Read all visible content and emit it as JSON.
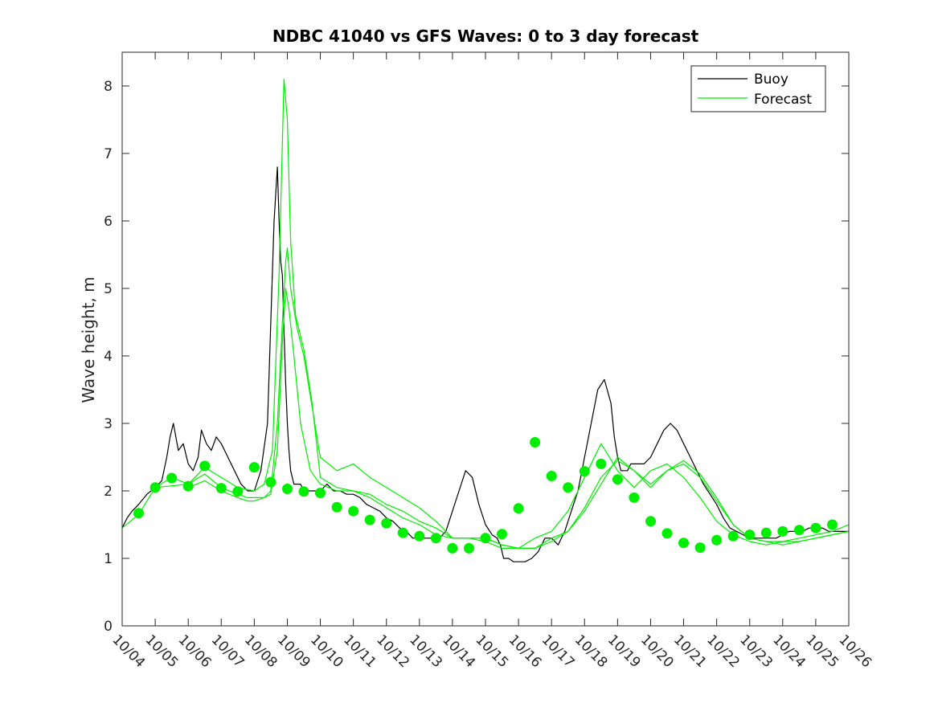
{
  "chart_data": {
    "type": "line",
    "title": "NDBC 41040 vs GFS Waves: 0 to 3 day forecast",
    "xlabel": "",
    "ylabel": "Wave height, m",
    "x_unit": "days since 10/04",
    "xlim": [
      0,
      22
    ],
    "ylim": [
      0,
      8.5
    ],
    "x_tick_labels": [
      "10/04",
      "10/05",
      "10/06",
      "10/07",
      "10/08",
      "10/09",
      "10/10",
      "10/11",
      "10/12",
      "10/13",
      "10/14",
      "10/15",
      "10/16",
      "10/17",
      "10/18",
      "10/19",
      "10/20",
      "10/21",
      "10/22",
      "10/23",
      "10/24",
      "10/25",
      "10/26"
    ],
    "y_ticks": [
      0,
      1,
      2,
      3,
      4,
      5,
      6,
      7,
      8
    ],
    "grid": false,
    "legend_placement": "top-right",
    "colors": {
      "buoy": "#000000",
      "forecast": "#00ee00",
      "axis": "#262626"
    },
    "legend": [
      {
        "label": "Buoy",
        "color": "#000000"
      },
      {
        "label": "Forecast",
        "color": "#00ee00"
      }
    ],
    "series": [
      {
        "name": "Buoy",
        "kind": "observed",
        "x": [
          0,
          0.15,
          0.3,
          0.5,
          0.75,
          1.0,
          1.2,
          1.35,
          1.45,
          1.55,
          1.7,
          1.85,
          2.0,
          2.15,
          2.3,
          2.4,
          2.55,
          2.7,
          2.85,
          3.0,
          3.2,
          3.4,
          3.6,
          3.8,
          4.0,
          4.2,
          4.4,
          4.6,
          4.7,
          4.75,
          4.8,
          4.85,
          4.9,
          4.95,
          5.0,
          5.05,
          5.1,
          5.2,
          5.3,
          5.4,
          5.5,
          5.6,
          5.8,
          6.0,
          6.2,
          6.4,
          6.6,
          6.8,
          7.0,
          7.2,
          7.4,
          7.6,
          7.8,
          8.0,
          8.2,
          8.4,
          8.6,
          8.8,
          9.0,
          9.2,
          9.4,
          9.6,
          9.8,
          10.0,
          10.2,
          10.4,
          10.6,
          10.8,
          11.0,
          11.2,
          11.35,
          11.45,
          11.55,
          11.7,
          11.85,
          12.0,
          12.2,
          12.4,
          12.6,
          12.8,
          13.0,
          13.2,
          13.4,
          13.6,
          13.8,
          14.0,
          14.2,
          14.4,
          14.6,
          14.8,
          14.9,
          15.0,
          15.05,
          15.1,
          15.2,
          15.3,
          15.4,
          15.6,
          15.8,
          16.0,
          16.2,
          16.4,
          16.6,
          16.8,
          17.0,
          17.2,
          17.4,
          17.6,
          17.8,
          18.0,
          18.2,
          18.4,
          18.6,
          18.8,
          19.0,
          19.2,
          19.4,
          19.6,
          19.8,
          20.0,
          20.2,
          20.4,
          20.6,
          20.8,
          21.0,
          21.2,
          21.4,
          21.6,
          21.8,
          22.0
        ],
        "y": [
          1.45,
          1.6,
          1.7,
          1.8,
          1.95,
          2.05,
          2.15,
          2.5,
          2.8,
          3.0,
          2.6,
          2.7,
          2.4,
          2.3,
          2.5,
          2.9,
          2.7,
          2.6,
          2.8,
          2.7,
          2.5,
          2.3,
          2.1,
          2.0,
          2.0,
          2.3,
          3.0,
          6.0,
          6.8,
          6.0,
          5.4,
          5.2,
          4.4,
          3.6,
          3.0,
          2.6,
          2.3,
          2.1,
          2.1,
          2.1,
          2.0,
          2.0,
          2.0,
          2.0,
          2.1,
          2.0,
          2.0,
          1.95,
          1.95,
          1.9,
          1.8,
          1.75,
          1.7,
          1.6,
          1.55,
          1.45,
          1.4,
          1.3,
          1.3,
          1.3,
          1.3,
          1.3,
          1.4,
          1.7,
          2.0,
          2.3,
          2.2,
          1.8,
          1.5,
          1.35,
          1.3,
          1.2,
          1.0,
          1.0,
          0.95,
          0.95,
          0.95,
          1.0,
          1.1,
          1.3,
          1.3,
          1.2,
          1.4,
          1.7,
          2.0,
          2.5,
          3.0,
          3.5,
          3.65,
          3.3,
          2.8,
          2.5,
          2.4,
          2.3,
          2.3,
          2.3,
          2.4,
          2.4,
          2.4,
          2.5,
          2.7,
          2.9,
          3.0,
          2.9,
          2.7,
          2.5,
          2.3,
          2.1,
          1.95,
          1.8,
          1.6,
          1.45,
          1.4,
          1.35,
          1.3,
          1.3,
          1.3,
          1.3,
          1.3,
          1.35,
          1.4,
          1.4,
          1.4,
          1.45,
          1.45,
          1.45,
          1.4,
          1.4,
          1.4,
          1.4
        ]
      },
      {
        "name": "Forecast",
        "kind": "forecast",
        "x": [
          0,
          0.5,
          1.0,
          1.5,
          2.0,
          2.5,
          3.0,
          3.5,
          4.0,
          4.3,
          4.55,
          4.75,
          4.9,
          5.0,
          5.1,
          5.25,
          5.5,
          5.75,
          6.0,
          6.5,
          7.0,
          7.5,
          8.0,
          8.5,
          9.0,
          9.5,
          10.0,
          10.5,
          11.0,
          11.5,
          12.0,
          12.5,
          13.0,
          13.5,
          14.0,
          14.5,
          15.0,
          15.5,
          16.0,
          16.5,
          17.0,
          17.5,
          18.0,
          18.5,
          19.0,
          19.5,
          20.0,
          20.5,
          21.0,
          21.5,
          22.0
        ],
        "y": [
          1.45,
          1.65,
          2.05,
          2.2,
          2.1,
          2.35,
          2.2,
          2.05,
          2.0,
          2.1,
          2.6,
          5.2,
          8.1,
          7.5,
          5.7,
          4.6,
          4.1,
          3.3,
          2.2,
          2.05,
          2.0,
          1.95,
          1.8,
          1.7,
          1.55,
          1.45,
          1.3,
          1.3,
          1.25,
          1.15,
          1.15,
          1.3,
          1.4,
          1.7,
          2.2,
          2.7,
          2.3,
          2.05,
          2.3,
          2.4,
          2.2,
          1.9,
          1.55,
          1.35,
          1.25,
          1.2,
          1.25,
          1.3,
          1.35,
          1.4,
          1.5
        ]
      },
      {
        "name": "Forecast",
        "kind": "forecast",
        "x": [
          1.0,
          2.0,
          2.5,
          3.0,
          3.5,
          3.8,
          4.0,
          4.3,
          4.5,
          4.7,
          4.85,
          4.95,
          5.0,
          5.1,
          5.3,
          5.5,
          5.7,
          6.0,
          6.5,
          7.0,
          7.5,
          8.0,
          8.5,
          9.0,
          9.5,
          10.0,
          10.5,
          11.0,
          11.5,
          12.0,
          12.5,
          13.0,
          13.5,
          14.0,
          14.5,
          15.0,
          15.5,
          16.0,
          16.5,
          17.0,
          17.5,
          18.0,
          18.5,
          19.0,
          19.5,
          20.0,
          20.5,
          21.0,
          21.5,
          22.0
        ],
        "y": [
          2.05,
          2.1,
          2.25,
          2.05,
          1.95,
          1.9,
          1.9,
          1.9,
          2.0,
          3.0,
          4.5,
          5.4,
          5.6,
          5.0,
          4.4,
          4.0,
          3.4,
          2.5,
          2.3,
          2.4,
          2.2,
          2.05,
          1.9,
          1.75,
          1.55,
          1.3,
          1.3,
          1.3,
          1.2,
          1.15,
          1.15,
          1.3,
          1.4,
          1.7,
          2.1,
          2.5,
          2.3,
          2.1,
          2.3,
          2.45,
          2.25,
          1.9,
          1.5,
          1.3,
          1.25,
          1.2,
          1.25,
          1.3,
          1.35,
          1.4
        ]
      },
      {
        "name": "Forecast",
        "kind": "forecast",
        "x": [
          2.0,
          2.5,
          3.0,
          3.5,
          3.8,
          4.0,
          4.3,
          4.5,
          4.7,
          4.85,
          4.95,
          5.05,
          5.2,
          5.4,
          5.7,
          6.0,
          6.5,
          7.0,
          7.5,
          8.0,
          8.5,
          9.0,
          9.5,
          10.0,
          10.5,
          11.0,
          11.5,
          12.0,
          12.5,
          13.0,
          13.5,
          14.0,
          14.5,
          15.0,
          15.5,
          16.0,
          16.5,
          17.0,
          17.5,
          18.0,
          18.5,
          19.0,
          19.5,
          20.0,
          20.5,
          21.0,
          21.5,
          22.0
        ],
        "y": [
          2.05,
          2.15,
          2.0,
          1.9,
          1.85,
          1.85,
          1.9,
          1.95,
          2.6,
          4.2,
          5.0,
          4.7,
          4.0,
          3.0,
          2.3,
          2.1,
          2.0,
          2.0,
          1.9,
          1.75,
          1.6,
          1.5,
          1.35,
          1.3,
          1.3,
          1.3,
          1.2,
          1.15,
          1.15,
          1.25,
          1.4,
          1.75,
          2.2,
          2.45,
          2.3,
          2.05,
          2.3,
          2.4,
          2.2,
          1.85,
          1.5,
          1.3,
          1.25,
          1.25,
          1.25,
          1.3,
          1.35,
          1.4
        ]
      }
    ],
    "markers": {
      "name": "Forecast analysis",
      "x": [
        0.5,
        1.0,
        1.5,
        2.0,
        2.5,
        3.0,
        3.5,
        4.0,
        4.5,
        5.0,
        5.5,
        6.0,
        6.5,
        7.0,
        7.5,
        8.0,
        8.5,
        9.0,
        9.5,
        10.0,
        10.5,
        11.0,
        11.5,
        12.0,
        12.5,
        13.0,
        13.5,
        14.0,
        14.5,
        15.0,
        15.5,
        16.0,
        16.5,
        17.0,
        17.5,
        18.0,
        18.5,
        19.0,
        19.5,
        20.0,
        20.5,
        21.0,
        21.5
      ],
      "y": [
        1.67,
        2.05,
        2.19,
        2.07,
        2.37,
        2.04,
        1.99,
        2.35,
        2.13,
        2.03,
        1.99,
        1.97,
        1.76,
        1.7,
        1.57,
        1.52,
        1.38,
        1.33,
        1.3,
        1.15,
        1.15,
        1.3,
        1.36,
        1.74,
        2.72,
        2.22,
        2.05,
        2.29,
        2.4,
        2.17,
        1.9,
        1.55,
        1.37,
        1.23,
        1.16,
        1.27,
        1.33,
        1.35,
        1.38,
        1.4,
        1.42,
        1.45,
        1.5
      ]
    }
  }
}
